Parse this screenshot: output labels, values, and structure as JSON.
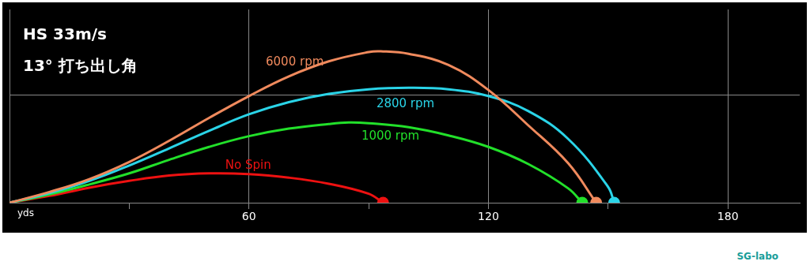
{
  "chart_data": {
    "type": "line",
    "title": "HS 33m/s",
    "subtitle": "13° 打ち出し角",
    "xlabel": "yds",
    "source": "SG-labo",
    "xlim": [
      0,
      198
    ],
    "xticks": [
      {
        "value": 30,
        "label": null
      },
      60,
      {
        "value": 90,
        "label": null
      },
      120,
      {
        "value": 150,
        "label": null
      },
      180
    ],
    "ylim": [
      0,
      54
    ],
    "yticks": [
      0,
      30
    ],
    "grid": true,
    "tick_labels": "x",
    "series": [
      {
        "name": "6000 rpm",
        "color": "#f08a5d",
        "marker": "circle",
        "x": [
          0,
          10,
          20,
          30,
          40,
          50,
          60,
          70,
          80,
          90,
          93,
          100,
          110,
          120,
          130,
          140,
          147
        ],
        "values": [
          0,
          3,
          6.6,
          11.4,
          17.3,
          23.7,
          29.8,
          35.3,
          39.5,
          42.1,
          42.3,
          41.6,
          38.5,
          31.5,
          21.6,
          11,
          0
        ]
      },
      {
        "name": "2800 rpm",
        "color": "#2ad4e8",
        "marker": "circle",
        "x": [
          0,
          10,
          20,
          30,
          40,
          50,
          60,
          70,
          80,
          90,
          100,
          110,
          120,
          130,
          140,
          150,
          151.5
        ],
        "values": [
          0,
          2.7,
          6.1,
          10.4,
          15.2,
          20.1,
          24.7,
          28.1,
          30.4,
          31.7,
          32.1,
          31.7,
          29.8,
          25.6,
          17.8,
          4.4,
          0
        ]
      },
      {
        "name": "1000 rpm",
        "color": "#22e02a",
        "marker": "circle",
        "x": [
          0,
          10,
          20,
          30,
          40,
          50,
          60,
          70,
          80,
          85,
          90,
          100,
          110,
          120,
          130,
          140,
          143.5
        ],
        "values": [
          0,
          2.3,
          5.1,
          8.2,
          12,
          15.6,
          18.6,
          20.7,
          22,
          22.4,
          22.2,
          21.1,
          18.8,
          15.6,
          10.8,
          4,
          0
        ]
      },
      {
        "name": "No Spin",
        "color": "#ee1111",
        "marker": "circle",
        "x": [
          0,
          10,
          20,
          30,
          40,
          50,
          60,
          70,
          80,
          90,
          93.6
        ],
        "values": [
          0,
          1.9,
          4.2,
          6.1,
          7.6,
          8.2,
          8,
          7,
          5.3,
          2.5,
          0
        ]
      }
    ]
  }
}
